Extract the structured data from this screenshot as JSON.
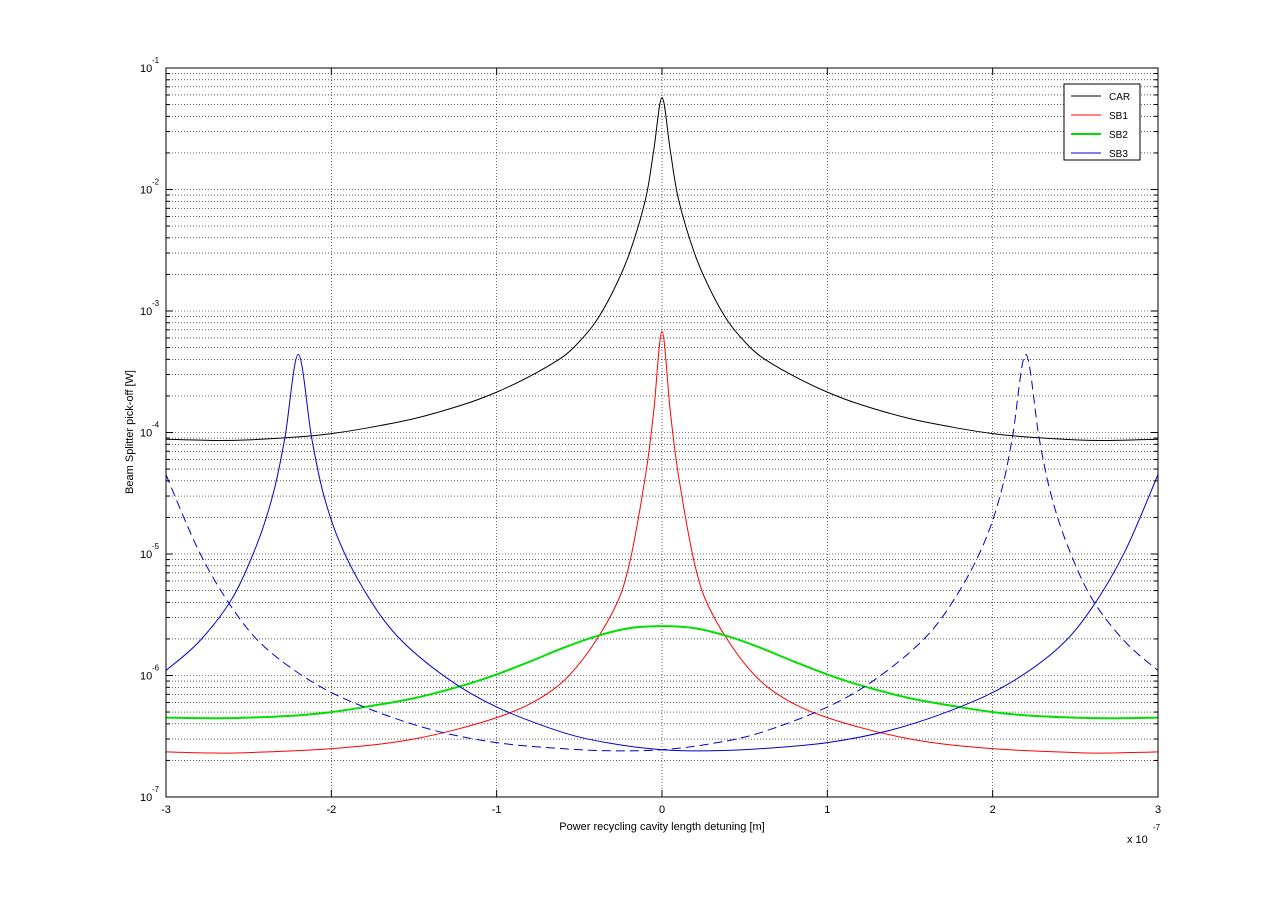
{
  "chart_data": {
    "type": "line",
    "title": "",
    "xlabel": "Power recycling cavity length detuning [m]",
    "ylabel": "Beam Splitter pick-off [W]",
    "x_scale_exponent": "-7",
    "x_scale_prefix": "x 10",
    "xlim": [
      -3,
      3
    ],
    "ylim": [
      1e-07,
      0.1
    ],
    "yscale": "log",
    "grid": true,
    "legend_position": "top-right",
    "x_ticks": [
      {
        "value": -3,
        "label": "-3"
      },
      {
        "value": -2,
        "label": "-2"
      },
      {
        "value": -1,
        "label": "-1"
      },
      {
        "value": 0,
        "label": "0"
      },
      {
        "value": 1,
        "label": "1"
      },
      {
        "value": 2,
        "label": "2"
      },
      {
        "value": 3,
        "label": "3"
      }
    ],
    "y_ticks": [
      {
        "value": 1e-07,
        "base": "10",
        "exp": "-7"
      },
      {
        "value": 1e-06,
        "base": "10",
        "exp": "-6"
      },
      {
        "value": 1e-05,
        "base": "10",
        "exp": "-5"
      },
      {
        "value": 0.0001,
        "base": "10",
        "exp": "-4"
      },
      {
        "value": 0.001,
        "base": "10",
        "exp": "-3"
      },
      {
        "value": 0.01,
        "base": "10",
        "exp": "-2"
      },
      {
        "value": 0.1,
        "base": "10",
        "exp": "-1"
      }
    ],
    "series": [
      {
        "name": "CAR",
        "color": "#000000",
        "dash": "solid",
        "x": [
          -3.0,
          -2.7,
          -2.5,
          -2.2,
          -2.0,
          -1.8,
          -1.5,
          -1.2,
          -1.0,
          -0.8,
          -0.6,
          -0.5,
          -0.4,
          -0.3,
          -0.2,
          -0.1,
          -0.05,
          0.0,
          0.05,
          0.1,
          0.2,
          0.3,
          0.4,
          0.5,
          0.6,
          0.8,
          1.0,
          1.2,
          1.5,
          1.8,
          2.0,
          2.2,
          2.5,
          2.7,
          3.0
        ],
        "y": [
          8.8e-05,
          8.6e-05,
          8.7e-05,
          9.2e-05,
          9.8e-05,
          0.000108,
          0.00013,
          0.00017,
          0.000215,
          0.00029,
          0.00042,
          0.00056,
          0.00082,
          0.00142,
          0.0029,
          0.0083,
          0.021,
          0.057,
          0.021,
          0.0083,
          0.0029,
          0.00142,
          0.00082,
          0.00056,
          0.00042,
          0.00029,
          0.000215,
          0.00017,
          0.00013,
          0.000108,
          9.8e-05,
          9.2e-05,
          8.7e-05,
          8.6e-05,
          8.8e-05
        ]
      },
      {
        "name": "SB1",
        "color": "#ff0000",
        "dash": "solid",
        "x": [
          -3.0,
          -2.7,
          -2.5,
          -2.0,
          -1.5,
          -1.0,
          -0.7,
          -0.5,
          -0.3,
          -0.2,
          -0.1,
          -0.05,
          0.0,
          0.05,
          0.1,
          0.2,
          0.3,
          0.5,
          0.7,
          1.0,
          1.5,
          2.0,
          2.5,
          2.7,
          3.0
        ],
        "y": [
          2.35e-07,
          2.3e-07,
          2.32e-07,
          2.5e-07,
          3e-07,
          4.5e-07,
          7e-07,
          1.25e-06,
          3.3e-06,
          8e-06,
          4.4e-05,
          0.00015,
          0.00068,
          0.00015,
          4.4e-05,
          8e-06,
          3.3e-06,
          1.25e-06,
          7e-07,
          4.5e-07,
          3e-07,
          2.5e-07,
          2.32e-07,
          2.3e-07,
          2.35e-07
        ]
      },
      {
        "name": "SB2",
        "color": "#00e000",
        "dash": "solid",
        "x": [
          -3.0,
          -2.7,
          -2.5,
          -2.2,
          -2.0,
          -1.8,
          -1.5,
          -1.2,
          -1.0,
          -0.8,
          -0.6,
          -0.4,
          -0.2,
          0.0,
          0.2,
          0.4,
          0.6,
          0.8,
          1.0,
          1.2,
          1.5,
          1.8,
          2.0,
          2.2,
          2.5,
          2.7,
          3.0
        ],
        "y": [
          4.5e-07,
          4.45e-07,
          4.5e-07,
          4.7e-07,
          5e-07,
          5.5e-07,
          6.5e-07,
          8.3e-07,
          1.02e-06,
          1.3e-06,
          1.68e-06,
          2.1e-06,
          2.45e-06,
          2.55e-06,
          2.45e-06,
          2.1e-06,
          1.68e-06,
          1.3e-06,
          1.02e-06,
          8.3e-07,
          6.5e-07,
          5.5e-07,
          5e-07,
          4.7e-07,
          4.5e-07,
          4.45e-07,
          4.5e-07
        ]
      },
      {
        "name": "SB3",
        "color": "#0000cc",
        "dash": "solid",
        "x": [
          -3.0,
          -2.8,
          -2.6,
          -2.45,
          -2.35,
          -2.28,
          -2.2,
          -2.12,
          -2.05,
          -1.95,
          -1.8,
          -1.6,
          -1.3,
          -1.0,
          -0.6,
          -0.3,
          0.0,
          0.3,
          0.6,
          1.0,
          1.4,
          1.8,
          2.1,
          2.4,
          2.6,
          2.8,
          3.0
        ],
        "y": [
          1.1e-06,
          1.9e-06,
          4.3e-06,
          1.2e-05,
          3.2e-05,
          9.2e-05,
          0.00044,
          9.2e-05,
          3.2e-05,
          1.25e-05,
          5e-06,
          2.1e-06,
          9.5e-07,
          5.5e-07,
          3.4e-07,
          2.75e-07,
          2.45e-07,
          2.4e-07,
          2.5e-07,
          2.8e-07,
          3.6e-07,
          5.5e-07,
          8.6e-07,
          1.7e-06,
          3.6e-06,
          1.05e-05,
          4.5e-05
        ]
      },
      {
        "name": "",
        "color": "#0000cc",
        "dash": "dashed",
        "x": [
          -3.0,
          -2.8,
          -2.6,
          -2.4,
          -2.1,
          -1.8,
          -1.4,
          -1.0,
          -0.6,
          -0.3,
          0.0,
          0.3,
          0.6,
          1.0,
          1.3,
          1.6,
          1.8,
          1.95,
          2.05,
          2.12,
          2.2,
          2.28,
          2.35,
          2.45,
          2.6,
          2.8,
          3.0
        ],
        "y": [
          4.5e-05,
          1.05e-05,
          3.6e-06,
          1.7e-06,
          8.6e-07,
          5.5e-07,
          3.6e-07,
          2.8e-07,
          2.5e-07,
          2.4e-07,
          2.45e-07,
          2.75e-07,
          3.4e-07,
          5.5e-07,
          9.5e-07,
          2.1e-06,
          5e-06,
          1.25e-05,
          3.2e-05,
          9.2e-05,
          0.00044,
          9.2e-05,
          3.2e-05,
          1.2e-05,
          4.3e-06,
          1.9e-06,
          1.1e-06
        ]
      }
    ]
  }
}
